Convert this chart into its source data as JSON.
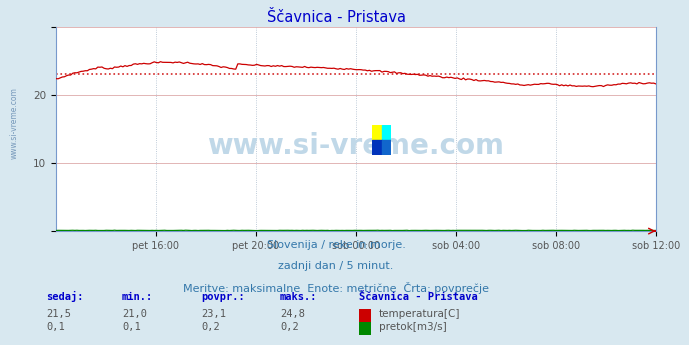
{
  "title": "Ščavnica - Pristava",
  "title_color": "#0000cc",
  "bg_color": "#d8e8f0",
  "plot_bg_color": "#ffffff",
  "grid_color": "#ddaaaa",
  "grid_color_v": "#aabbcc",
  "xlabel_ticks": [
    "pet 16:00",
    "pet 20:00",
    "sob 00:00",
    "sob 04:00",
    "sob 08:00",
    "sob 12:00"
  ],
  "ylim": [
    0,
    30
  ],
  "ytick_vals": [
    10,
    20
  ],
  "temp_color": "#cc0000",
  "flow_color": "#008800",
  "avg_line_color": "#cc0000",
  "avg_value": 23.1,
  "watermark": "www.si-vreme.com",
  "watermark_color": "#c0d8e8",
  "subtitle1": "Slovenija / reke in morje.",
  "subtitle2": "zadnji dan / 5 minut.",
  "subtitle3": "Meritve: maksimalne  Enote: metrične  Črta: povprečje",
  "subtitle_color": "#3377aa",
  "table_headers": [
    "sedaj:",
    "min.:",
    "povpr.:",
    "maks.:",
    "Ščavnica - Pristava"
  ],
  "table_row1": [
    "21,5",
    "21,0",
    "23,1",
    "24,8"
  ],
  "table_row2": [
    "0,1",
    "0,1",
    "0,2",
    "0,2"
  ],
  "table_label1": "temperatura[C]",
  "table_label2": "pretok[m3/s]",
  "header_color": "#0000cc",
  "data_color": "#555555",
  "side_text_color": "#7799bb",
  "spine_color": "#7799cc",
  "n_points": 288
}
